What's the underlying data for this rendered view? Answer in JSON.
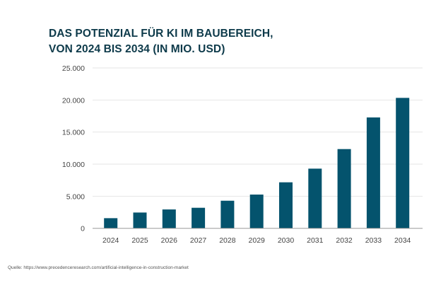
{
  "chart_data": {
    "type": "bar",
    "title_line1": "DAS POTENZIAL FÜR KI IM BAUBEREICH,",
    "title_line2": "VON 2024 BIS 2034 (IN MIO. USD)",
    "xlabel": "",
    "ylabel": "",
    "categories": [
      "2024",
      "2025",
      "2026",
      "2027",
      "2028",
      "2029",
      "2030",
      "2031",
      "2032",
      "2033",
      "2034"
    ],
    "values": [
      1580,
      2460,
      2940,
      3200,
      4300,
      5260,
      7170,
      9300,
      12350,
      17280,
      20330
    ],
    "ylim": [
      0,
      25000
    ],
    "yticks": [
      0,
      5000,
      10000,
      15000,
      20000,
      25000
    ],
    "ytick_labels": [
      "0",
      "5.000",
      "10.000",
      "15.000",
      "20.000",
      "25.000"
    ],
    "grid": true,
    "legend": "none",
    "bar_color": "#04536d"
  },
  "source": "Quelle: https://www.precedenceresearch.com/artificial-intelligence-in-construction-market"
}
